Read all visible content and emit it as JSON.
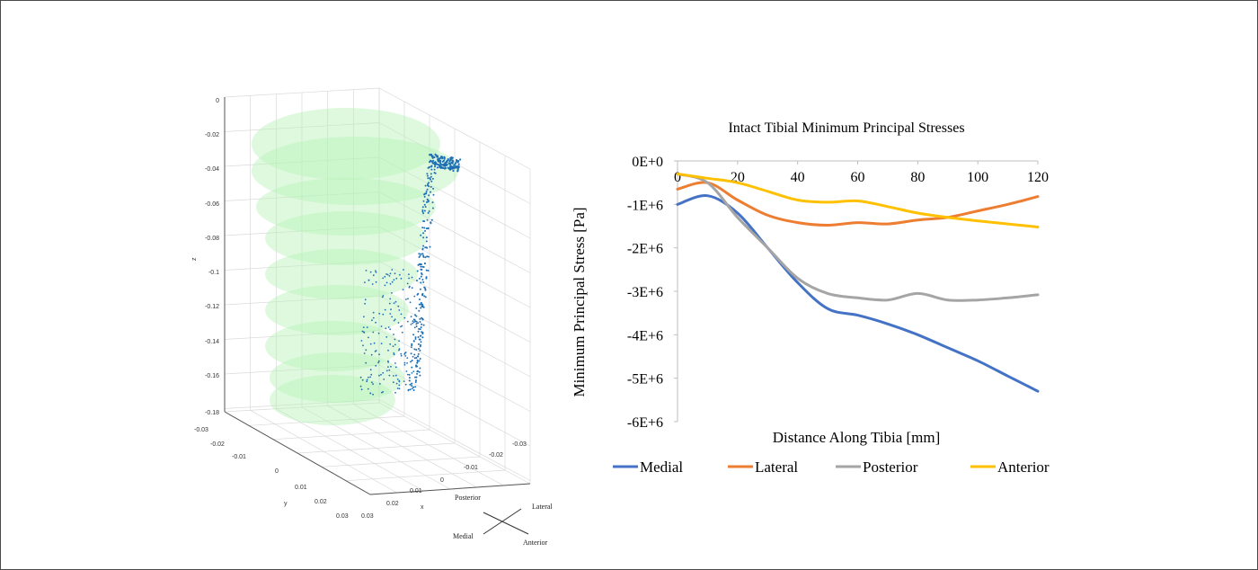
{
  "plot3d": {
    "z_label": "z",
    "x_label": "x",
    "y_label": "y",
    "z_ticks": [
      "0",
      "-0.02",
      "-0.04",
      "-0.06",
      "-0.08",
      "-0.1",
      "-0.12",
      "-0.14",
      "-0.16",
      "-0.18"
    ],
    "x_ticks": [
      "0.03",
      "0.02",
      "0.01",
      "0",
      "-0.01",
      "-0.02",
      "-0.03"
    ],
    "y_ticks": [
      "-0.03",
      "-0.02",
      "-0.01",
      "0",
      "0.01",
      "0.02",
      "0.03"
    ],
    "orientation": {
      "posterior": "Posterior",
      "lateral": "Lateral",
      "medial": "Medial",
      "anterior": "Anterior"
    },
    "colors": {
      "surface": "#b6f2b6",
      "points": "#1f6fb4",
      "grid": "#d9d9d9"
    }
  },
  "chart_data": {
    "type": "line",
    "title": "Intact Tibial Minimum Principal Stresses",
    "xlabel": "Distance Along Tibia [mm]",
    "ylabel": "Minimum Principal Stress [Pa]",
    "xlim": [
      0,
      120
    ],
    "ylim": [
      -6000000,
      0
    ],
    "x_ticks": [
      "0",
      "20",
      "40",
      "60",
      "80",
      "100",
      "120"
    ],
    "y_ticks": [
      "0E+0",
      "-1E+6",
      "-2E+6",
      "-3E+6",
      "-4E+6",
      "-5E+6",
      "-6E+6"
    ],
    "x": [
      0,
      10,
      20,
      30,
      40,
      50,
      60,
      70,
      80,
      90,
      100,
      110,
      120
    ],
    "series": [
      {
        "name": "Medial",
        "color": "#4472c4",
        "values": [
          -1000000,
          -800000,
          -1200000,
          -2000000,
          -2800000,
          -3400000,
          -3550000,
          -3750000,
          -4000000,
          -4300000,
          -4600000,
          -4950000,
          -5300000
        ]
      },
      {
        "name": "Lateral",
        "color": "#ed7d31",
        "values": [
          -650000,
          -500000,
          -900000,
          -1250000,
          -1420000,
          -1480000,
          -1420000,
          -1450000,
          -1360000,
          -1300000,
          -1150000,
          -1000000,
          -820000
        ]
      },
      {
        "name": "Posterior",
        "color": "#a5a5a5",
        "values": [
          -300000,
          -500000,
          -1300000,
          -2000000,
          -2700000,
          -3050000,
          -3150000,
          -3200000,
          -3050000,
          -3200000,
          -3200000,
          -3150000,
          -3080000
        ]
      },
      {
        "name": "Anterior",
        "color": "#ffc000",
        "values": [
          -300000,
          -400000,
          -500000,
          -700000,
          -900000,
          -950000,
          -920000,
          -1050000,
          -1200000,
          -1300000,
          -1380000,
          -1450000,
          -1520000
        ]
      }
    ],
    "legend": "bottom",
    "grid": false
  }
}
